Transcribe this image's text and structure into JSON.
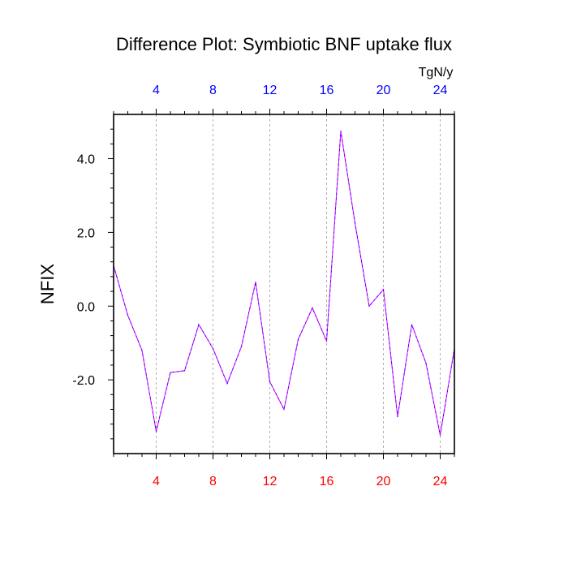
{
  "chart_data": {
    "type": "line",
    "title": "Difference Plot: Symbiotic BNF uptake flux",
    "ylabel": "NFIX",
    "units": "TgN/y",
    "xlim": [
      1,
      25
    ],
    "ylim": [
      -4.0,
      5.2
    ],
    "x_ticks": [
      4,
      8,
      12,
      16,
      20,
      24
    ],
    "x_tick_labels": [
      "4",
      "8",
      "12",
      "16",
      "20",
      "24"
    ],
    "y_ticks": [
      4.0,
      2.0,
      0.0,
      -2.0
    ],
    "y_tick_labels": [
      "4.0",
      "2.0",
      "0.0",
      "-2.0"
    ],
    "grid": "vertical dashed at x ticks",
    "colors": {
      "top_tick_labels": "#0000ff",
      "bottom_tick_labels": "#ff0000",
      "series_a": "#0000ff",
      "series_b": "#ff00ff",
      "grid": "#b0b0b0"
    },
    "series": [
      {
        "x": [
          1,
          2,
          3,
          4,
          5,
          6,
          7,
          8,
          9,
          10,
          11,
          12,
          13,
          14,
          15,
          16,
          17,
          18,
          19,
          20,
          21,
          22,
          23,
          24,
          25
        ],
        "values": [
          1.1,
          -0.25,
          -1.2,
          -3.4,
          -1.8,
          -1.75,
          -0.5,
          -1.15,
          -2.1,
          -1.1,
          0.65,
          -2.05,
          -2.8,
          -0.9,
          -0.05,
          -0.95,
          4.75,
          2.25,
          0.0,
          0.45,
          -3.0,
          -0.5,
          -1.55,
          -3.5,
          -1.15
        ]
      }
    ]
  }
}
